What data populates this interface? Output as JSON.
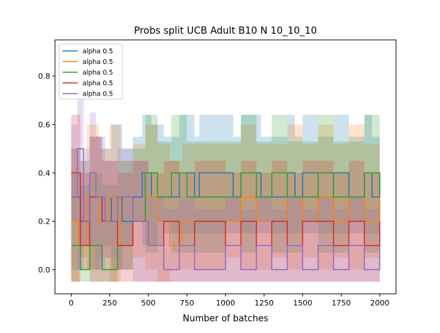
{
  "chart_data": {
    "type": "line",
    "title": "Probs split UCB Adult B10 N 10_10_10",
    "xlabel": "Number of batches",
    "ylabel": "",
    "xlim": [
      -105,
      2105
    ],
    "ylim": [
      -0.1,
      0.95
    ],
    "xticks": [
      0,
      250,
      500,
      750,
      1000,
      1250,
      1500,
      1750,
      2000
    ],
    "yticks": [
      0.0,
      0.2,
      0.4,
      0.6,
      0.8
    ],
    "xtick_labels": [
      "0",
      "250",
      "500",
      "750",
      "1000",
      "1250",
      "1500",
      "1750",
      "2000"
    ],
    "ytick_labels": [
      "0.0",
      "0.2",
      "0.4",
      "0.6",
      "0.8"
    ],
    "grid": false,
    "legend_position": "top-left",
    "series": [
      {
        "name": "alpha 0.5",
        "color": "#1f77b4",
        "values_described": "step line switching mostly between 0.2, 0.3 and 0.4",
        "x": [
          0,
          60,
          120,
          200,
          260,
          330,
          400,
          460,
          520,
          600,
          700,
          800,
          830,
          1000,
          1050,
          1100,
          1230,
          1300,
          1400,
          1450,
          1500,
          1600,
          1700,
          1800,
          1900,
          1950,
          2000
        ],
        "y": [
          0.3,
          0.2,
          0.3,
          0.2,
          0.3,
          0.2,
          0.3,
          0.4,
          0.3,
          0.3,
          0.4,
          0.3,
          0.4,
          0.4,
          0.3,
          0.4,
          0.3,
          0.3,
          0.4,
          0.3,
          0.4,
          0.3,
          0.4,
          0.3,
          0.4,
          0.3,
          0.4
        ],
        "band_low": [
          0.1,
          0.0,
          0.1,
          0.0,
          0.1,
          0.0,
          0.1,
          0.2,
          0.1,
          0.1,
          0.15,
          0.15,
          0.15,
          0.15,
          0.15,
          0.15,
          0.15,
          0.15,
          0.15,
          0.15,
          0.15,
          0.15,
          0.15,
          0.15,
          0.15,
          0.15,
          0.15
        ],
        "band_high": [
          0.5,
          0.45,
          0.55,
          0.5,
          0.6,
          0.5,
          0.55,
          0.64,
          0.6,
          0.55,
          0.64,
          0.55,
          0.64,
          0.64,
          0.55,
          0.64,
          0.55,
          0.55,
          0.64,
          0.55,
          0.64,
          0.55,
          0.64,
          0.55,
          0.64,
          0.55,
          0.64
        ]
      },
      {
        "name": "alpha 0.5",
        "color": "#ff7f0e",
        "values_described": "step line mostly between 0.1 and 0.3",
        "x": [
          0,
          50,
          100,
          180,
          250,
          320,
          400,
          480,
          560,
          640,
          720,
          800,
          900,
          1000,
          1100,
          1200,
          1300,
          1400,
          1500,
          1600,
          1700,
          1800,
          1900,
          2000
        ],
        "y": [
          0.2,
          0.1,
          0.3,
          0.2,
          0.3,
          0.1,
          0.2,
          0.3,
          0.2,
          0.1,
          0.2,
          0.2,
          0.2,
          0.2,
          0.3,
          0.2,
          0.2,
          0.3,
          0.2,
          0.3,
          0.2,
          0.3,
          0.2,
          0.3
        ],
        "band_low": [
          0.0,
          -0.05,
          0.05,
          0.0,
          0.05,
          -0.05,
          0.0,
          0.05,
          0.0,
          -0.05,
          0.0,
          0.0,
          0.0,
          0.0,
          0.05,
          0.0,
          0.0,
          0.05,
          0.0,
          0.05,
          0.0,
          0.05,
          0.0,
          0.05
        ],
        "band_high": [
          0.5,
          0.45,
          0.6,
          0.5,
          0.6,
          0.45,
          0.52,
          0.6,
          0.52,
          0.45,
          0.52,
          0.52,
          0.52,
          0.52,
          0.6,
          0.52,
          0.52,
          0.6,
          0.52,
          0.6,
          0.52,
          0.6,
          0.52,
          0.6
        ]
      },
      {
        "name": "alpha 0.5",
        "color": "#2ca02c",
        "values_described": "step line starting near 0.1, later around 0.3 and 0.4",
        "x": [
          0,
          60,
          120,
          200,
          300,
          400,
          480,
          560,
          650,
          750,
          850,
          1000,
          1100,
          1200,
          1300,
          1400,
          1500,
          1600,
          1700,
          1800,
          1900,
          2000
        ],
        "y": [
          0.1,
          0.0,
          0.1,
          0.0,
          0.1,
          0.2,
          0.4,
          0.3,
          0.4,
          0.3,
          0.3,
          0.3,
          0.4,
          0.3,
          0.4,
          0.3,
          0.3,
          0.4,
          0.3,
          0.3,
          0.4,
          0.3
        ],
        "band_low": [
          -0.05,
          -0.05,
          -0.05,
          -0.05,
          -0.05,
          0.0,
          0.2,
          0.07,
          0.2,
          0.07,
          0.07,
          0.07,
          0.2,
          0.07,
          0.2,
          0.07,
          0.07,
          0.2,
          0.07,
          0.07,
          0.2,
          0.07
        ],
        "band_high": [
          0.4,
          0.35,
          0.4,
          0.35,
          0.45,
          0.5,
          0.64,
          0.53,
          0.64,
          0.53,
          0.53,
          0.53,
          0.64,
          0.53,
          0.64,
          0.53,
          0.53,
          0.64,
          0.53,
          0.53,
          0.64,
          0.53
        ]
      },
      {
        "name": "alpha 0.5",
        "color": "#d62728",
        "values_described": "step line mostly between 0.1 and 0.2",
        "x": [
          0,
          60,
          120,
          200,
          300,
          400,
          500,
          600,
          700,
          800,
          900,
          1000,
          1100,
          1200,
          1300,
          1400,
          1500,
          1600,
          1700,
          1800,
          1900,
          2000
        ],
        "y": [
          0.4,
          0.1,
          0.3,
          0.2,
          0.1,
          0.2,
          0.1,
          0.2,
          0.1,
          0.2,
          0.2,
          0.1,
          0.2,
          0.1,
          0.2,
          0.1,
          0.2,
          0.2,
          0.1,
          0.2,
          0.1,
          0.2
        ],
        "band_low": [
          0.1,
          -0.05,
          0.0,
          -0.05,
          -0.05,
          -0.05,
          -0.05,
          -0.05,
          -0.05,
          -0.05,
          -0.05,
          -0.05,
          -0.05,
          -0.05,
          -0.05,
          -0.05,
          -0.05,
          -0.05,
          -0.05,
          -0.05,
          -0.05,
          -0.05
        ],
        "band_high": [
          0.64,
          0.4,
          0.55,
          0.45,
          0.4,
          0.45,
          0.4,
          0.45,
          0.4,
          0.45,
          0.45,
          0.4,
          0.45,
          0.4,
          0.45,
          0.4,
          0.45,
          0.45,
          0.4,
          0.45,
          0.4,
          0.45
        ]
      },
      {
        "name": "alpha 0.5",
        "color": "#9467bd",
        "values_described": "step line high early (0.3-0.5) then mostly between 0.0 and 0.1",
        "x": [
          0,
          40,
          80,
          120,
          160,
          220,
          300,
          400,
          500,
          600,
          700,
          800,
          900,
          1000,
          1100,
          1200,
          1300,
          1400,
          1500,
          1600,
          1700,
          1800,
          1900,
          2000
        ],
        "y": [
          0.3,
          0.5,
          0.2,
          0.4,
          0.3,
          0.2,
          0.3,
          0.2,
          0.1,
          0.0,
          0.1,
          0.0,
          0.0,
          0.1,
          0.0,
          0.1,
          0.0,
          0.1,
          0.0,
          0.1,
          0.0,
          0.1,
          0.0,
          0.1
        ],
        "band_low": [
          0.1,
          0.2,
          0.0,
          0.1,
          0.1,
          0.0,
          0.05,
          0.0,
          -0.05,
          -0.05,
          -0.05,
          -0.05,
          -0.05,
          -0.05,
          -0.05,
          -0.05,
          -0.05,
          -0.05,
          -0.05,
          -0.05,
          -0.05,
          -0.05,
          -0.05,
          -0.05
        ],
        "band_high": [
          0.6,
          0.75,
          0.5,
          0.65,
          0.55,
          0.45,
          0.5,
          0.45,
          0.3,
          0.25,
          0.3,
          0.25,
          0.25,
          0.3,
          0.25,
          0.3,
          0.25,
          0.3,
          0.25,
          0.3,
          0.25,
          0.3,
          0.25,
          0.3
        ]
      }
    ]
  }
}
